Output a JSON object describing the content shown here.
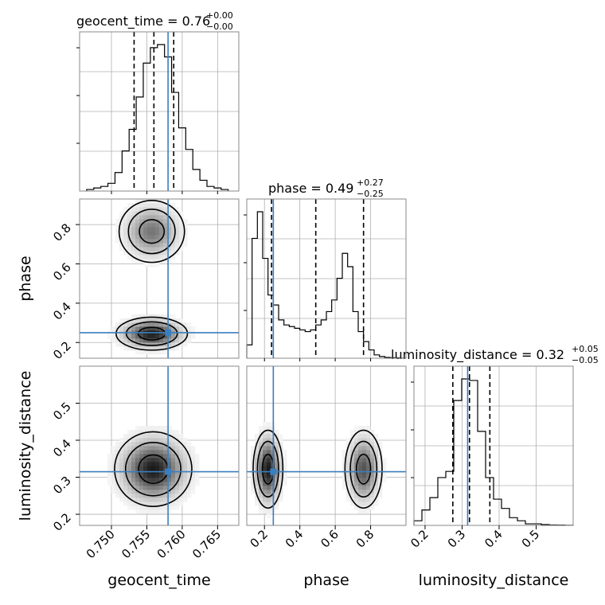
{
  "chart_data": {
    "type": "corner",
    "parameters": [
      "geocent_time",
      "phase",
      "luminosity_distance"
    ],
    "truth_color": "#3a7ebf",
    "truths": {
      "geocent_time": 0.758,
      "phase": 0.25,
      "luminosity_distance": 0.315
    },
    "panels": [
      {
        "id": "hist-geocent_time",
        "type": "histogram",
        "param": "geocent_time",
        "title_main": "geocent_time = 0.76",
        "title_sup": "+0.00",
        "title_sub": "−0.00",
        "xlim": [
          0.7455,
          0.768
        ],
        "bins_start": 0.7465,
        "bin_width": 0.001,
        "counts": [
          0.01,
          0.02,
          0.03,
          0.05,
          0.12,
          0.26,
          0.4,
          0.61,
          0.83,
          0.93,
          0.95,
          0.87,
          0.64,
          0.41,
          0.27,
          0.14,
          0.07,
          0.03,
          0.02,
          0.01
        ],
        "quantiles": [
          0.7532,
          0.756,
          0.7588
        ],
        "truth": 0.758
      },
      {
        "id": "hist-phase",
        "type": "histogram",
        "param": "phase",
        "title_main": "phase = 0.49",
        "title_sup": "+0.27",
        "title_sub": "−0.25",
        "xlim": [
          0.1,
          1.0
        ],
        "bins_start": 0.1,
        "bin_width": 0.03,
        "counts": [
          0.08,
          0.72,
          0.88,
          0.6,
          0.38,
          0.32,
          0.23,
          0.2,
          0.19,
          0.18,
          0.17,
          0.16,
          0.17,
          0.2,
          0.23,
          0.28,
          0.35,
          0.48,
          0.63,
          0.55,
          0.28,
          0.16,
          0.1,
          0.05,
          0.02,
          0.01,
          0.005,
          0.003,
          0.002,
          0.001
        ],
        "quantiles": [
          0.24,
          0.49,
          0.76
        ],
        "truth": 0.25
      },
      {
        "id": "hist-luminosity_distance",
        "type": "histogram",
        "param": "luminosity_distance",
        "title_main": "luminosity_distance = 0.32",
        "title_sup": "+0.05",
        "title_sub": "−0.05",
        "xlim": [
          0.17,
          0.6
        ],
        "bins_start": 0.17,
        "bin_width": 0.0215,
        "counts": [
          0.03,
          0.1,
          0.18,
          0.31,
          0.35,
          0.81,
          0.95,
          0.94,
          0.61,
          0.31,
          0.17,
          0.11,
          0.05,
          0.03,
          0.01,
          0.01,
          0.005,
          0.003,
          0.002,
          0.001
        ],
        "quantiles": [
          0.275,
          0.32,
          0.375
        ],
        "truth": 0.315
      },
      {
        "id": "contour-geocent_time-phase",
        "type": "contour2d",
        "x": "geocent_time",
        "y": "phase",
        "xlim": [
          0.7455,
          0.768
        ],
        "ylim": [
          0.12,
          0.93
        ],
        "modes": [
          {
            "cx": 0.7557,
            "cy": 0.765,
            "sx": 0.0022,
            "sy": 0.075,
            "w": 0.6
          },
          {
            "cx": 0.7557,
            "cy": 0.245,
            "sx": 0.0024,
            "sy": 0.04,
            "w": 1.0
          }
        ],
        "truth": [
          0.758,
          0.25
        ]
      },
      {
        "id": "contour-geocent_time-luminosity_distance",
        "type": "contour2d",
        "x": "geocent_time",
        "y": "luminosity_distance",
        "xlim": [
          0.7455,
          0.768
        ],
        "ylim": [
          0.17,
          0.6
        ],
        "modes": [
          {
            "cx": 0.7559,
            "cy": 0.322,
            "sx": 0.0026,
            "sy": 0.048,
            "w": 1.0
          }
        ],
        "truth": [
          0.758,
          0.315
        ]
      },
      {
        "id": "contour-phase-luminosity_distance",
        "type": "contour2d",
        "x": "phase",
        "y": "luminosity_distance",
        "xlim": [
          0.1,
          1.0
        ],
        "ylim": [
          0.17,
          0.6
        ],
        "modes": [
          {
            "cx": 0.22,
            "cy": 0.322,
            "sx": 0.04,
            "sy": 0.05,
            "w": 1.0
          },
          {
            "cx": 0.76,
            "cy": 0.322,
            "sx": 0.05,
            "sy": 0.05,
            "w": 0.75
          }
        ],
        "truth": [
          0.25,
          0.315
        ]
      }
    ],
    "x_ticks": {
      "geocent_time": [
        "0.750",
        "0.755",
        "0.760",
        "0.765"
      ],
      "phase": [
        "0.2",
        "0.4",
        "0.6",
        "0.8"
      ],
      "luminosity_distance": [
        "0.2",
        "0.3",
        "0.4",
        "0.5"
      ]
    },
    "y_ticks": {
      "phase": [
        "0.2",
        "0.4",
        "0.6",
        "0.8"
      ],
      "luminosity_distance": [
        "0.2",
        "0.3",
        "0.4",
        "0.5"
      ]
    },
    "x_labels": [
      "geocent_time",
      "phase",
      "luminosity_distance"
    ],
    "y_labels": [
      "phase",
      "luminosity_distance"
    ],
    "grid": true
  }
}
